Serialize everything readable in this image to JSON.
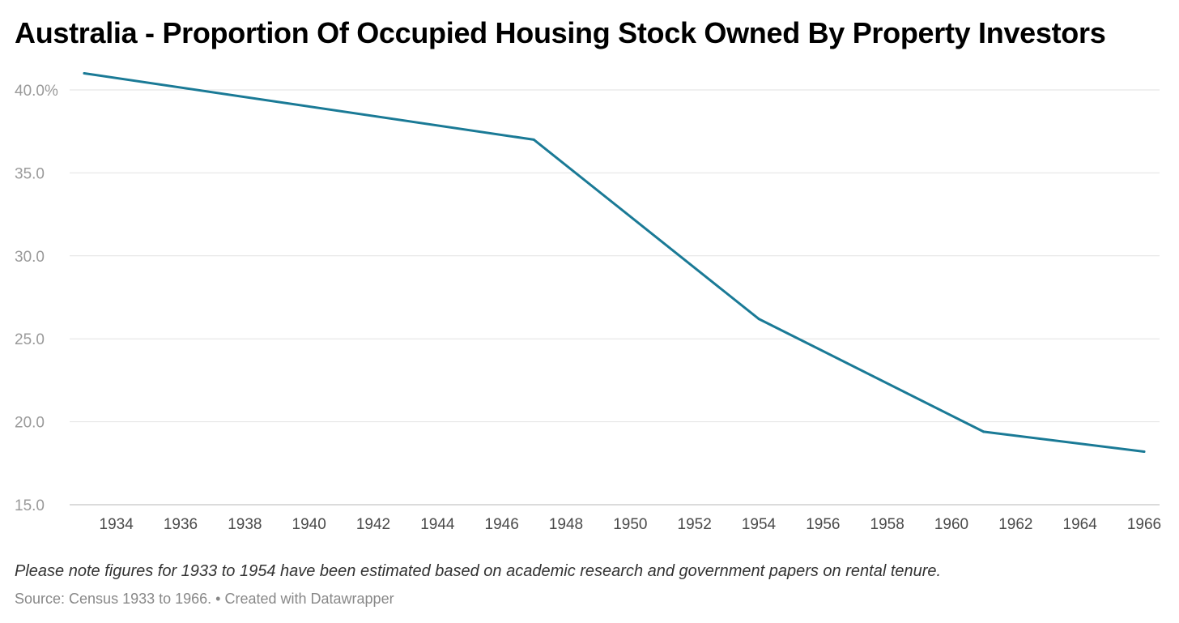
{
  "chart_data": {
    "type": "line",
    "title": "Australia - Proportion Of Occupied Housing Stock Owned By Property Investors",
    "xlabel": "",
    "ylabel": "",
    "xlim": [
      1933,
      1966
    ],
    "ylim": [
      15,
      41
    ],
    "y_ticks": [
      "40.0%",
      "35.0",
      "30.0",
      "25.0",
      "20.0",
      "15.0"
    ],
    "y_tick_values": [
      40,
      35,
      30,
      25,
      20,
      15
    ],
    "x_ticks": [
      1934,
      1936,
      1938,
      1940,
      1942,
      1944,
      1946,
      1948,
      1950,
      1952,
      1954,
      1956,
      1958,
      1960,
      1962,
      1964,
      1966
    ],
    "grid": true,
    "line_color": "#1a7a96",
    "series": [
      {
        "x": [
          1933,
          1947,
          1954,
          1961,
          1966
        ],
        "values": [
          41.0,
          37.0,
          26.2,
          19.4,
          18.2
        ]
      }
    ],
    "note": "Please note figures for 1933 to 1954 have been estimated based on academic research and government papers on rental tenure.",
    "source": "Source: Census 1933 to 1966. • Created with Datawrapper"
  }
}
